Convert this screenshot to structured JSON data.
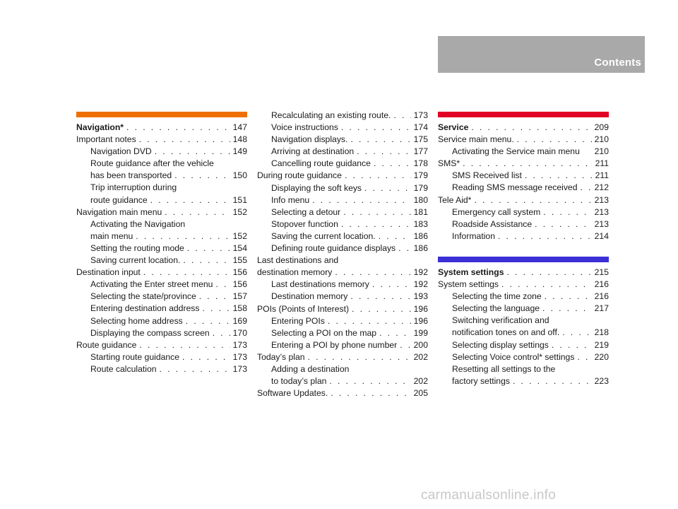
{
  "header": {
    "title": "Contents"
  },
  "colors": {
    "header_box": "#a9a9a9",
    "navigation": "#ef7000",
    "service": "#e10026",
    "system_settings": "#3b2fd6"
  },
  "watermark": "carmanualsonline.info",
  "columns": [
    {
      "sections": [
        {
          "color": "#ef7000",
          "entries": [
            {
              "label": "Navigation*",
              "page": "147",
              "level": 0,
              "bold": true
            },
            {
              "label": "Important notes",
              "page": "148",
              "level": 0
            },
            {
              "label": "Navigation DVD",
              "page": "149",
              "level": 1
            },
            {
              "label": "Route guidance after the vehicle",
              "page": "",
              "level": 1,
              "nodots": true
            },
            {
              "label": "has been transported",
              "page": "150",
              "level": 1
            },
            {
              "label": "Trip interruption during",
              "page": "",
              "level": 1,
              "nodots": true
            },
            {
              "label": "route guidance",
              "page": "151",
              "level": 1
            },
            {
              "label": "Navigation main menu",
              "page": "152",
              "level": 0
            },
            {
              "label": "Activating the Navigation",
              "page": "",
              "level": 1,
              "nodots": true
            },
            {
              "label": "main menu",
              "page": "152",
              "level": 1
            },
            {
              "label": "Setting the routing mode",
              "page": "154",
              "level": 1
            },
            {
              "label": "Saving current location.",
              "page": "155",
              "level": 1
            },
            {
              "label": "Destination input",
              "page": "156",
              "level": 0
            },
            {
              "label": "Activating the Enter street menu",
              "page": "156",
              "level": 1
            },
            {
              "label": "Selecting the state/province",
              "page": "157",
              "level": 1
            },
            {
              "label": "Entering destination address",
              "page": "158",
              "level": 1
            },
            {
              "label": "Selecting home address",
              "page": "169",
              "level": 1
            },
            {
              "label": "Displaying the compass screen",
              "page": "170",
              "level": 1
            },
            {
              "label": "Route guidance",
              "page": "173",
              "level": 0
            },
            {
              "label": "Starting route guidance",
              "page": "173",
              "level": 1
            },
            {
              "label": "Route calculation",
              "page": "173",
              "level": 1
            }
          ]
        }
      ]
    },
    {
      "sections": [
        {
          "color": "",
          "entries": [
            {
              "label": "Recalculating an existing route.",
              "page": "173",
              "level": 1
            },
            {
              "label": "Voice instructions",
              "page": "174",
              "level": 1
            },
            {
              "label": "Navigation displays.",
              "page": "175",
              "level": 1
            },
            {
              "label": "Arriving at destination",
              "page": "177",
              "level": 1
            },
            {
              "label": "Cancelling route guidance",
              "page": "178",
              "level": 1
            },
            {
              "label": "During route guidance",
              "page": "179",
              "level": 0
            },
            {
              "label": "Displaying the soft keys",
              "page": "179",
              "level": 1
            },
            {
              "label": "Info menu",
              "page": "180",
              "level": 1
            },
            {
              "label": "Selecting a detour",
              "page": "181",
              "level": 1
            },
            {
              "label": "Stopover function",
              "page": "183",
              "level": 1
            },
            {
              "label": "Saving the current location.",
              "page": "186",
              "level": 1
            },
            {
              "label": "Defining route guidance displays",
              "page": "186",
              "level": 1
            },
            {
              "label": "Last destinations and",
              "page": "",
              "level": 0,
              "nodots": true
            },
            {
              "label": "destination memory",
              "page": "192",
              "level": 0
            },
            {
              "label": "Last destinations memory",
              "page": "192",
              "level": 1
            },
            {
              "label": "Destination memory",
              "page": "193",
              "level": 1
            },
            {
              "label": "POIs (Points of Interest)",
              "page": "196",
              "level": 0
            },
            {
              "label": "Entering POIs",
              "page": "196",
              "level": 1
            },
            {
              "label": "Selecting a POI on the map",
              "page": "199",
              "level": 1
            },
            {
              "label": "Entering a POI by phone number",
              "page": "200",
              "level": 1
            },
            {
              "label": "Today’s plan",
              "page": "202",
              "level": 0
            },
            {
              "label": "Adding a destination",
              "page": "",
              "level": 1,
              "nodots": true
            },
            {
              "label": "to today’s plan",
              "page": "202",
              "level": 1
            },
            {
              "label": "Software Updates.",
              "page": "205",
              "level": 0
            }
          ]
        }
      ]
    },
    {
      "sections": [
        {
          "color": "#e10026",
          "entries": [
            {
              "label": "Service",
              "page": "209",
              "level": 0,
              "bold": true
            },
            {
              "label": "Service main menu.",
              "page": "210",
              "level": 0
            },
            {
              "label": "Activating the Service main menu",
              "page": "210",
              "level": 1,
              "nodots": true
            },
            {
              "label": "SMS*",
              "page": "211",
              "level": 0
            },
            {
              "label": "SMS Received list",
              "page": "211",
              "level": 1
            },
            {
              "label": "Reading SMS message received",
              "page": "212",
              "level": 1
            },
            {
              "label": "Tele Aid*",
              "page": "213",
              "level": 0
            },
            {
              "label": "Emergency call system",
              "page": "213",
              "level": 1
            },
            {
              "label": "Roadside Assistance",
              "page": "213",
              "level": 1
            },
            {
              "label": "Information",
              "page": "214",
              "level": 1
            }
          ]
        },
        {
          "color": "#3b2fd6",
          "entries": [
            {
              "label": "System settings",
              "page": "215",
              "level": 0,
              "bold": true
            },
            {
              "label": "System settings",
              "page": "216",
              "level": 0
            },
            {
              "label": "Selecting the time zone",
              "page": "216",
              "level": 1
            },
            {
              "label": "Selecting the language",
              "page": "217",
              "level": 1
            },
            {
              "label": "Switching verification and",
              "page": "",
              "level": 1,
              "nodots": true
            },
            {
              "label": "notification tones on and off.",
              "page": "218",
              "level": 1
            },
            {
              "label": "Selecting display settings",
              "page": "219",
              "level": 1
            },
            {
              "label": "Selecting Voice control* settings",
              "page": "220",
              "level": 1
            },
            {
              "label": "Resetting all settings to the",
              "page": "",
              "level": 1,
              "nodots": true
            },
            {
              "label": "factory settings",
              "page": "223",
              "level": 1
            }
          ]
        }
      ]
    }
  ]
}
